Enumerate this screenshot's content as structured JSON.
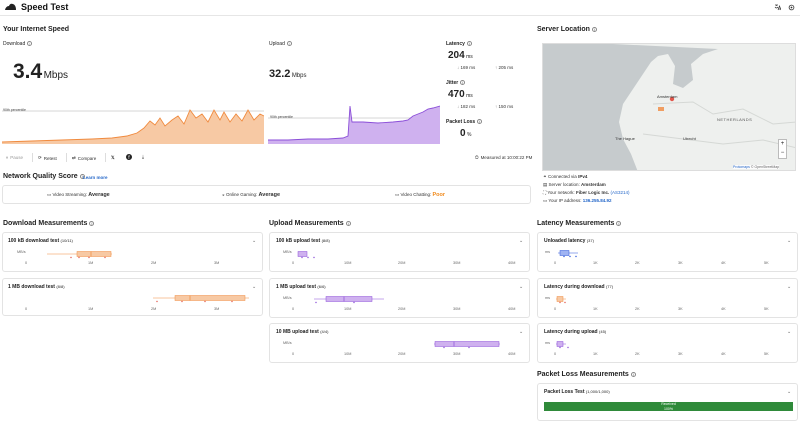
{
  "app": {
    "title": "Speed Test"
  },
  "internet_speed": {
    "heading": "Your Internet Speed",
    "download": {
      "label": "Download",
      "value": "3.4",
      "unit": "Mbps",
      "percentile": "90th percentile"
    },
    "upload": {
      "label": "Upload",
      "value": "32.2",
      "unit": "Mbps",
      "percentile": "90th percentile"
    },
    "latency": {
      "label": "Latency",
      "value": "204",
      "unit": "ms",
      "low": "169",
      "high": "205",
      "low_unit": "ms",
      "high_unit": "ms"
    },
    "jitter": {
      "label": "Jitter",
      "value": "470",
      "unit": "ms",
      "low": "182",
      "high": "150",
      "low_unit": "ms",
      "high_unit": "ms"
    },
    "packet_loss": {
      "label": "Packet Loss",
      "value": "0",
      "unit": "%"
    }
  },
  "toolbar": {
    "pause": "Pause",
    "retest": "Retest",
    "compare": "Compare",
    "measured_at": "Measured at 10:00:22 PM"
  },
  "nqs": {
    "heading": "Network Quality Score",
    "learn_more": "Learn more",
    "items": [
      {
        "label": "Video Streaming:",
        "value": "Average",
        "color": "#333333"
      },
      {
        "label": "Online Gaming:",
        "value": "Average",
        "color": "#333333"
      },
      {
        "label": "Video Chatting:",
        "value": "Poor",
        "color": "#f08a1c"
      }
    ]
  },
  "server": {
    "heading": "Server Location",
    "map_labels": {
      "amsterdam": "Amsterdam",
      "the_hague": "The Hague",
      "netherlands": "NETHERLANDS",
      "utrecht": "Utrecht",
      "zoom_in": "+",
      "zoom_out": "−",
      "attribution_a": "Protomaps",
      "attribution_b": "© OpenStreetMap"
    },
    "info": [
      {
        "label": "Connected via",
        "value": "IPv4"
      },
      {
        "label": "Server location:",
        "value": "Amsterdam"
      },
      {
        "label": "Your network:",
        "value": "Fiber Logic Inc.",
        "extra": "(AS3214)"
      },
      {
        "label": "Your IP address:",
        "value": "136.255.84.92"
      }
    ]
  },
  "download_measurements": {
    "heading": "Download Measurements",
    "tests": [
      {
        "title": "100 kB download test",
        "count": "(10/11)",
        "unit": "MB/s",
        "ticks": [
          "0",
          "1M",
          "2M",
          "3M"
        ]
      },
      {
        "title": "1 MB download test",
        "count": "(8/8)",
        "unit": "",
        "ticks": [
          "0",
          "1M",
          "2M",
          "3M"
        ]
      }
    ]
  },
  "upload_measurements": {
    "heading": "Upload Measurements",
    "tests": [
      {
        "title": "100 kB upload test",
        "count": "(8/8)",
        "unit": "MB/s",
        "ticks": [
          "0",
          "10M",
          "20M",
          "30M",
          "40M"
        ]
      },
      {
        "title": "1 MB upload test",
        "count": "(6/6)",
        "unit": "MB/s",
        "ticks": [
          "0",
          "10M",
          "20M",
          "30M",
          "40M"
        ]
      },
      {
        "title": "10 MB upload test",
        "count": "(4/4)",
        "unit": "MB/s",
        "ticks": [
          "0",
          "10M",
          "20M",
          "30M",
          "40M"
        ]
      }
    ]
  },
  "latency_measurements": {
    "heading": "Latency Measurements",
    "tests": [
      {
        "title": "Unloaded latency",
        "count": "(37)",
        "unit": "ms",
        "ticks": [
          "0",
          "1K",
          "2K",
          "3K",
          "4K",
          "5K"
        ]
      },
      {
        "title": "Latency during download",
        "count": "(77)",
        "unit": "ms",
        "ticks": [
          "0",
          "1K",
          "2K",
          "3K",
          "4K",
          "5K"
        ]
      },
      {
        "title": "Latency during upload",
        "count": "(45)",
        "unit": "ms",
        "ticks": [
          "0",
          "1K",
          "2K",
          "3K",
          "4K",
          "5K"
        ]
      }
    ]
  },
  "packet_loss_measurements": {
    "heading": "Packet Loss Measurements",
    "test_title": "Packet Loss Test",
    "test_count": "(1,000/1,000)",
    "bar_label": "Received",
    "bar_percent": "100%",
    "received_fraction": 1.0
  },
  "colors": {
    "download": "#f08a3e",
    "upload": "#8b4fd8",
    "latency": "#2a54d8",
    "received": "#2f8a3a"
  }
}
